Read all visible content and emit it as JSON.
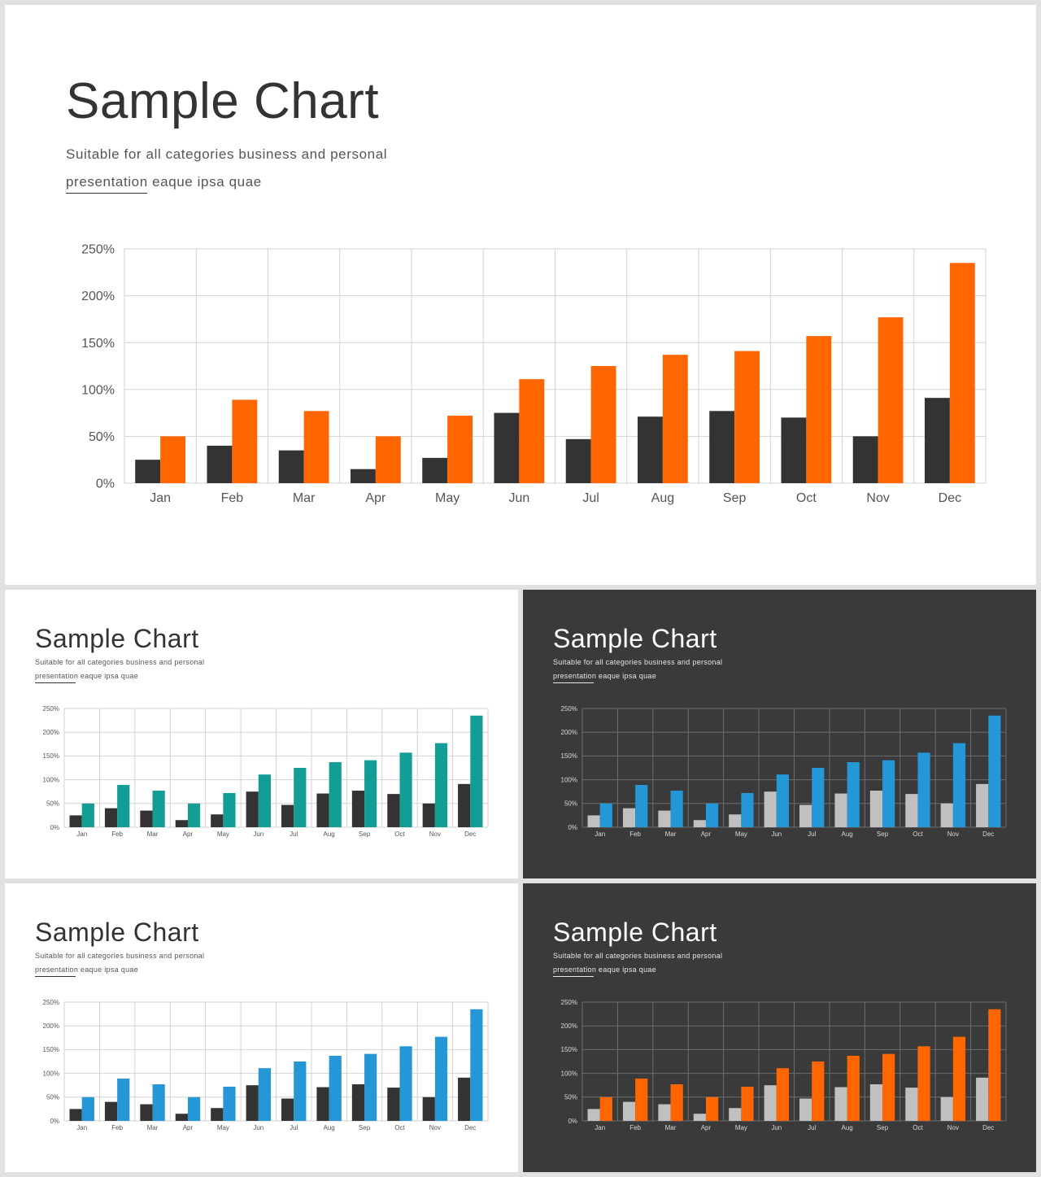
{
  "title": "Sample Chart",
  "subtitle_line1": "Suitable  for  all  categories  business  and  personal",
  "subtitle_line2": "presentation  eaque  ipsa  quae",
  "slides": [
    {
      "id": "main",
      "theme": "light",
      "colors": {
        "series1": "#333333",
        "series2": "#ff6600"
      }
    },
    {
      "id": "teal",
      "theme": "light",
      "colors": {
        "series1": "#333333",
        "series2": "#129e95"
      }
    },
    {
      "id": "dark-blue",
      "theme": "dark",
      "colors": {
        "series1": "#c0c0c0",
        "series2": "#2596d6"
      }
    },
    {
      "id": "blue",
      "theme": "light",
      "colors": {
        "series1": "#333333",
        "series2": "#2596d6"
      }
    },
    {
      "id": "dark-orange",
      "theme": "dark",
      "colors": {
        "series1": "#c0c0c0",
        "series2": "#ff6600"
      }
    }
  ],
  "chart_data": {
    "type": "bar",
    "categories": [
      "Jan",
      "Feb",
      "Mar",
      "Apr",
      "May",
      "Jun",
      "Jul",
      "Aug",
      "Sep",
      "Oct",
      "Nov",
      "Dec"
    ],
    "series": [
      {
        "values": [
          25,
          40,
          35,
          15,
          27,
          75,
          47,
          71,
          77,
          70,
          50,
          91
        ]
      },
      {
        "values": [
          50,
          89,
          77,
          50,
          72,
          111,
          125,
          137,
          141,
          157,
          177,
          235
        ]
      }
    ],
    "ylim": [
      0,
      250
    ],
    "yticks": [
      "0%",
      "50%",
      "100%",
      "150%",
      "200%",
      "250%"
    ],
    "ytick_values": [
      0,
      50,
      100,
      150,
      200,
      250
    ],
    "grid": true,
    "legend": "none"
  }
}
